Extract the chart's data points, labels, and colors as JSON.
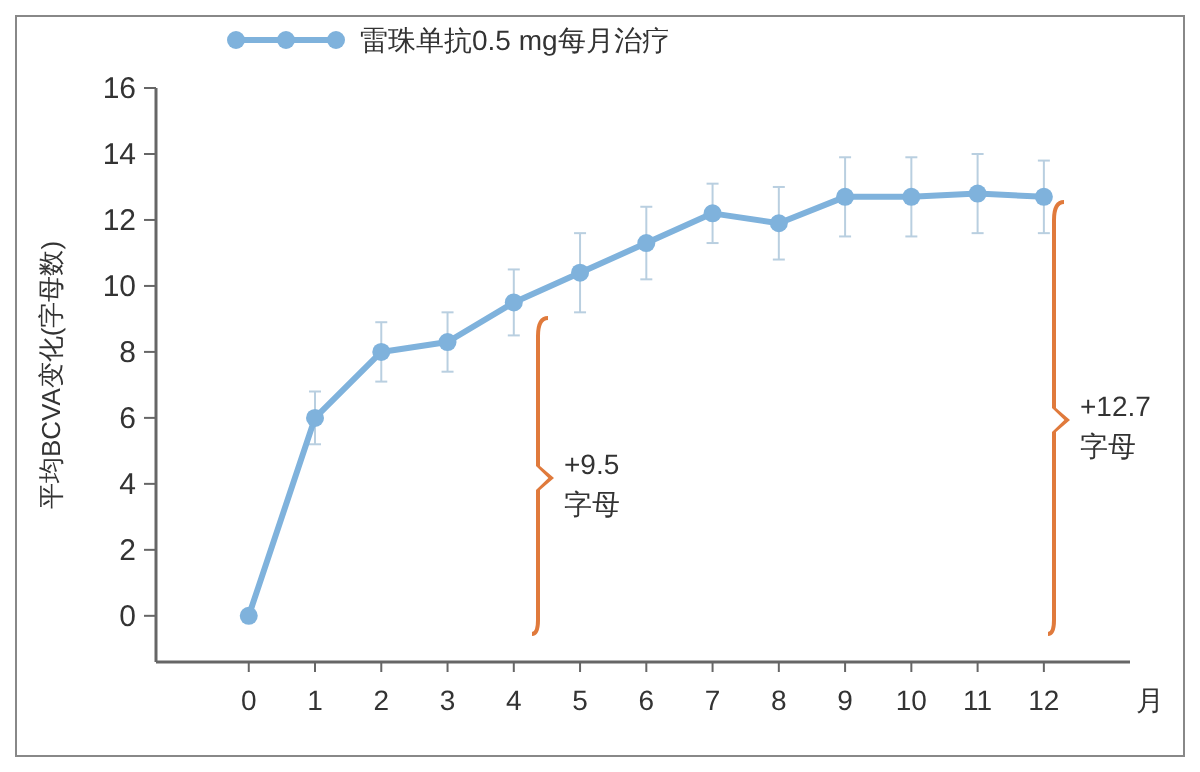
{
  "chart_data": {
    "type": "line",
    "xlabel": "月",
    "ylabel": "平均BCVA变化(字母数)",
    "x": [
      0,
      1,
      2,
      3,
      4,
      5,
      6,
      7,
      8,
      9,
      10,
      11,
      12
    ],
    "series": [
      {
        "name": "雷珠单抗0.5 mg每月治疗",
        "color": "#7fb2dc",
        "values": [
          0,
          6.0,
          8.0,
          8.3,
          9.5,
          10.4,
          11.3,
          12.2,
          11.9,
          12.7,
          12.7,
          12.8,
          12.7
        ],
        "errors": [
          null,
          0.8,
          0.9,
          0.9,
          1.0,
          1.2,
          1.1,
          0.9,
          1.1,
          1.2,
          1.2,
          1.2,
          1.1
        ]
      }
    ],
    "xlim": [
      -1.4,
      13.3
    ],
    "ylim": [
      -1.4,
      16
    ],
    "xticks": [
      0,
      1,
      2,
      3,
      4,
      5,
      6,
      7,
      8,
      9,
      10,
      11,
      12
    ],
    "yticks": [
      0,
      2,
      4,
      6,
      8,
      10,
      12,
      14,
      16
    ],
    "marker": "circle",
    "legend": "top left",
    "grid": false,
    "annotations": [
      "+9.5 字母",
      "+12.7 字母"
    ]
  }
}
